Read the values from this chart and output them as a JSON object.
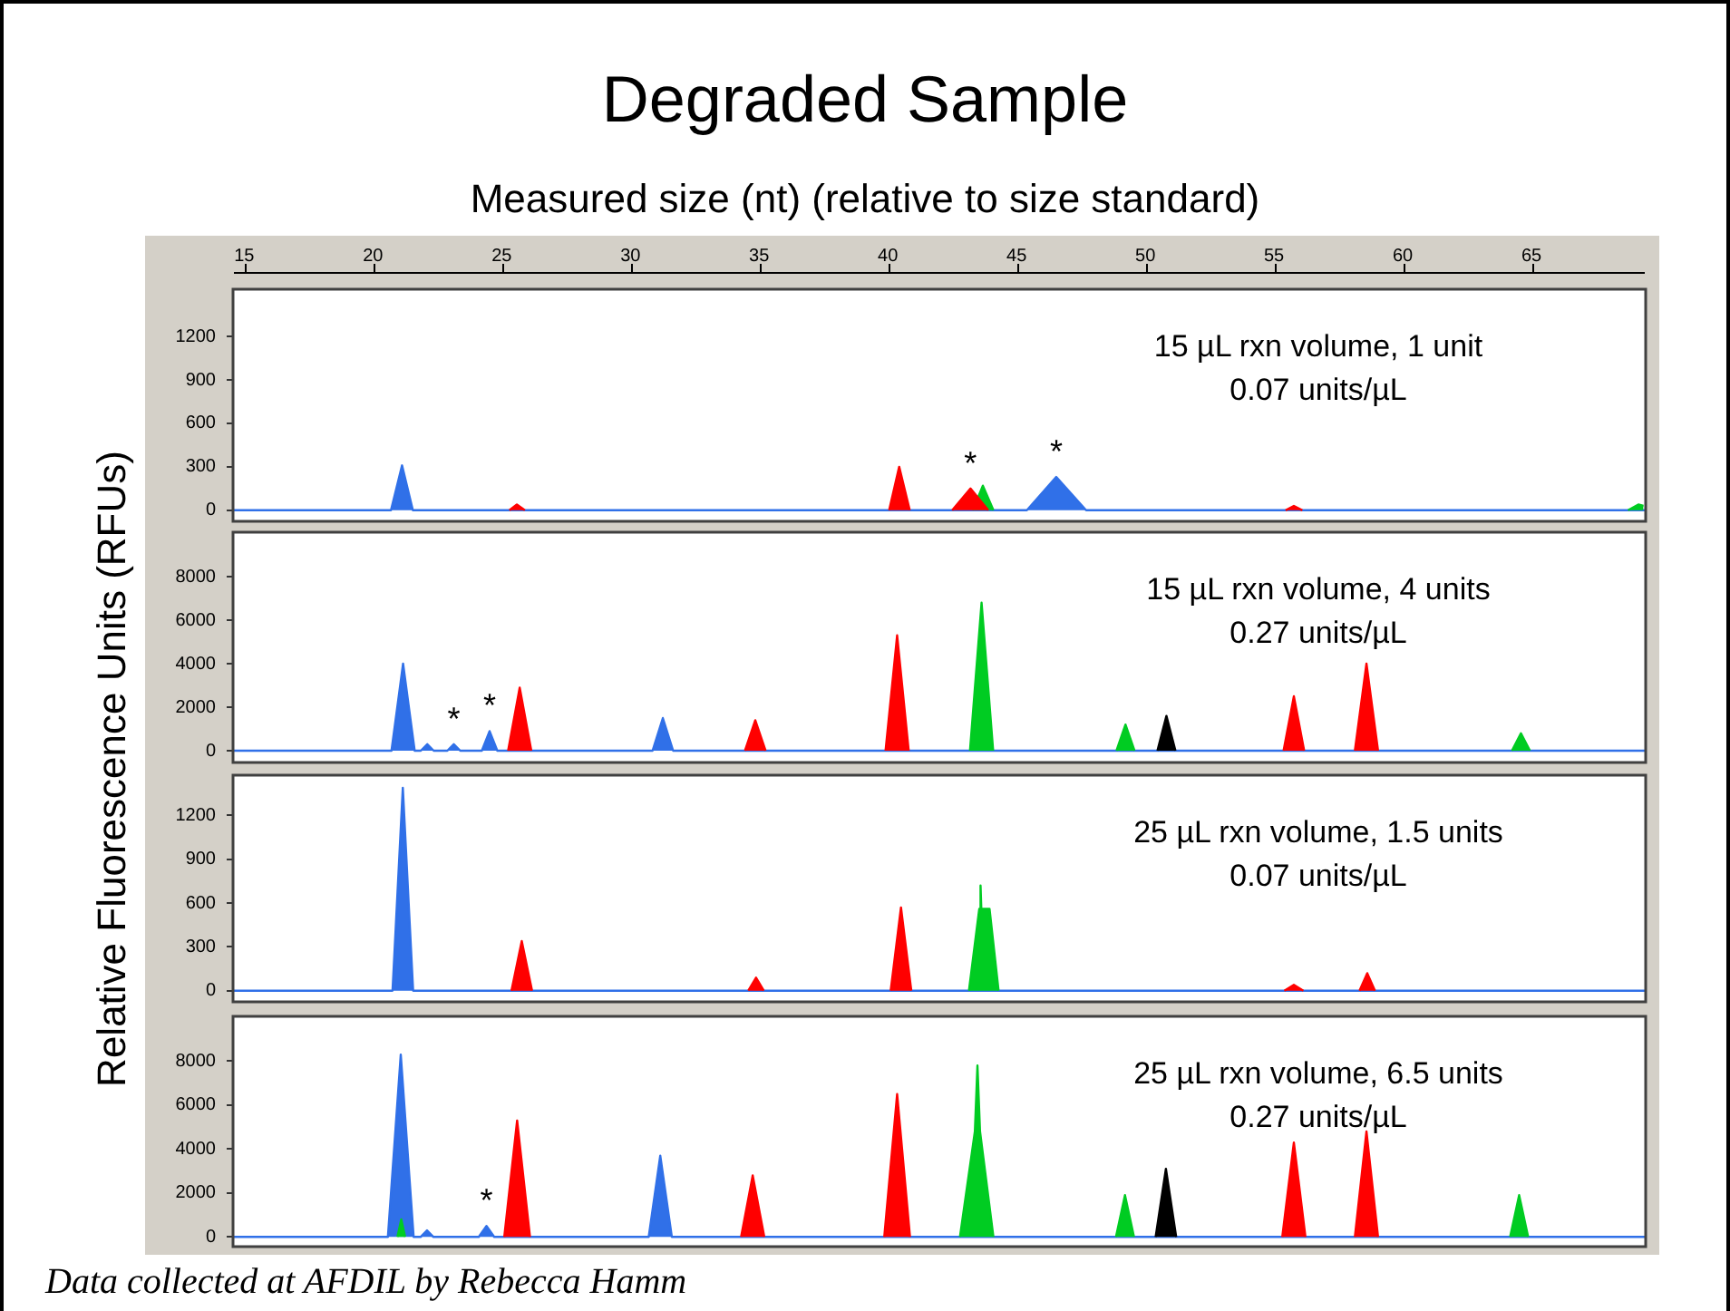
{
  "chart_data": [
    {
      "type": "area",
      "title": "Degraded Sample",
      "xlabel": "Measured size (nt) (relative to size standard)",
      "ylabel": "Relative Fluorescence Units (RFUs)",
      "subtitle": "15 µL rxn volume, 1 unit\n0.07 units/µL",
      "xlim": [
        14.6,
        69.4
      ],
      "xticks": [
        15,
        20,
        25,
        30,
        35,
        40,
        45,
        50,
        55,
        60,
        65
      ],
      "ylim": [
        -70,
        1520
      ],
      "yticks": [
        0,
        300,
        600,
        900,
        1200
      ],
      "series": [
        {
          "color": "#3070e8",
          "x": [
            14.6,
            20.7,
            21.13,
            21.55,
            45.4,
            46.54,
            47.7,
            69.4
          ],
          "values": [
            0,
            0,
            310,
            0,
            0,
            230,
            0,
            0
          ]
        },
        {
          "color": "#00cc22",
          "x": [
            43.3,
            43.69,
            44.1,
            56,
            68.75,
            69.15,
            69.35
          ],
          "values": [
            0,
            170,
            0,
            null,
            0,
            40,
            30
          ]
        },
        {
          "color": "#ff0000",
          "x": [
            25.3,
            25.59,
            25.9,
            33,
            40.05,
            40.44,
            40.85,
            42,
            42.5,
            43.21,
            43.9,
            50,
            55.45,
            55.77,
            56.1
          ],
          "values": [
            0,
            40,
            0,
            null,
            0,
            300,
            0,
            null,
            0,
            150,
            0,
            null,
            0,
            30,
            0
          ]
        }
      ],
      "annotations": [
        {
          "text": "*",
          "x": 43.21,
          "y": 150
        },
        {
          "text": "*",
          "x": 46.54,
          "y": 230
        }
      ]
    },
    {
      "type": "area",
      "subtitle": "15 µL rxn volume, 4 units\n0.27 units/µL",
      "tick_labels": "y",
      "xlim": [
        14.6,
        69.4
      ],
      "ylim": [
        -500,
        10000
      ],
      "yticks": [
        0,
        2000,
        4000,
        6000,
        8000
      ],
      "series": [
        {
          "color": "#3070e8",
          "x": [
            14.6,
            20.72,
            21.17,
            21.62,
            21.86,
            22.11,
            22.36,
            22.89,
            23.14,
            23.39,
            24.23,
            24.53,
            24.83,
            30.86,
            31.26,
            31.66,
            69.4
          ],
          "values": [
            0,
            0,
            4000,
            0,
            0,
            300,
            0,
            0,
            300,
            0,
            0,
            900,
            0,
            0,
            1500,
            0,
            0
          ]
        },
        {
          "color": "#00cc22",
          "x": [
            43.19,
            43.64,
            44.09,
            46,
            48.88,
            49.23,
            49.58,
            57,
            64.24,
            64.59,
            64.94
          ],
          "values": [
            0,
            6800,
            0,
            null,
            0,
            1200,
            0,
            null,
            0,
            800,
            0
          ]
        },
        {
          "color": "#ff0000",
          "x": [
            25.25,
            25.7,
            26.15,
            30,
            34.45,
            34.85,
            35.25,
            37,
            39.91,
            40.36,
            40.81,
            48,
            55.37,
            55.77,
            56.17,
            57.2,
            58.14,
            58.59,
            59.04
          ],
          "values": [
            0,
            2900,
            0,
            null,
            0,
            1400,
            0,
            null,
            0,
            5300,
            0,
            null,
            0,
            2500,
            0,
            null,
            0,
            4000,
            0
          ]
        },
        {
          "color": "#000000",
          "x": [
            50.47,
            50.82,
            51.17
          ],
          "values": [
            0,
            1600,
            0
          ]
        }
      ],
      "annotations": [
        {
          "text": "*",
          "x": 23.14,
          "y": 300
        },
        {
          "text": "*",
          "x": 24.53,
          "y": 900
        }
      ]
    },
    {
      "type": "area",
      "subtitle": "25 µL rxn volume, 1.5 units\n0.07 units/µL",
      "tick_labels": "y",
      "xlim": [
        14.6,
        69.4
      ],
      "ylim": [
        -70,
        1470
      ],
      "yticks": [
        0,
        300,
        600,
        900,
        1200
      ],
      "series": [
        {
          "color": "#3070e8",
          "x": [
            14.6,
            20.76,
            21.16,
            21.56,
            69.4
          ],
          "values": [
            0,
            0,
            1390,
            0,
            0
          ]
        },
        {
          "color": "#00cc22",
          "x": [
            43.15,
            43.55,
            43.6,
            43.63,
            43.95,
            44.3
          ],
          "values": [
            0,
            560,
            720,
            560,
            560,
            0
          ]
        },
        {
          "color": "#ff0000",
          "x": [
            25.38,
            25.78,
            26.18,
            30,
            34.58,
            34.88,
            35.18,
            37,
            40.11,
            40.51,
            40.91,
            48,
            55.4,
            55.77,
            56.14,
            57,
            58.32,
            58.62,
            58.92
          ],
          "values": [
            0,
            340,
            0,
            null,
            0,
            90,
            0,
            null,
            0,
            570,
            0,
            null,
            0,
            40,
            0,
            null,
            0,
            120,
            0
          ]
        }
      ]
    },
    {
      "type": "area",
      "subtitle": "25 µL rxn volume, 6.5 units\n0.27 units/µL",
      "tick_labels": "y",
      "xlim": [
        14.6,
        69.4
      ],
      "ylim": [
        -400,
        10000
      ],
      "yticks": [
        0,
        2000,
        4000,
        6000,
        8000
      ],
      "series": [
        {
          "color": "#3070e8",
          "x": [
            14.6,
            20.58,
            21.08,
            21.58,
            21.85,
            22.1,
            22.35,
            24.11,
            24.41,
            24.71,
            30.71,
            31.16,
            31.61,
            69.4
          ],
          "values": [
            0,
            0,
            8300,
            0,
            0,
            300,
            0,
            0,
            500,
            0,
            0,
            3700,
            0,
            0
          ]
        },
        {
          "color": "#00cc22",
          "x": [
            20.95,
            21.1,
            21.25,
            30,
            42.8,
            43.38,
            43.48,
            43.58,
            44.1,
            46,
            48.86,
            49.21,
            49.56,
            57,
            64.17,
            64.52,
            64.87
          ],
          "values": [
            0,
            800,
            0,
            null,
            0,
            4800,
            7800,
            4800,
            0,
            null,
            0,
            1900,
            0,
            null,
            0,
            1900,
            0
          ]
        },
        {
          "color": "#ff0000",
          "x": [
            25.1,
            25.6,
            26.1,
            30,
            34.3,
            34.75,
            35.2,
            37,
            39.86,
            40.36,
            40.86,
            48,
            55.32,
            55.77,
            56.22,
            57.2,
            58.14,
            58.59,
            59.04
          ],
          "values": [
            0,
            5300,
            0,
            null,
            0,
            2800,
            0,
            null,
            0,
            6500,
            0,
            null,
            0,
            4300,
            0,
            null,
            0,
            4800,
            0
          ]
        },
        {
          "color": "#000000",
          "x": [
            50.4,
            50.8,
            51.2
          ],
          "values": [
            0,
            3100,
            0
          ]
        }
      ],
      "annotations": [
        {
          "text": "*",
          "x": 24.41,
          "y": 500
        },
        "Data collected at AFDIL by Rebecca Hamm"
      ]
    }
  ]
}
